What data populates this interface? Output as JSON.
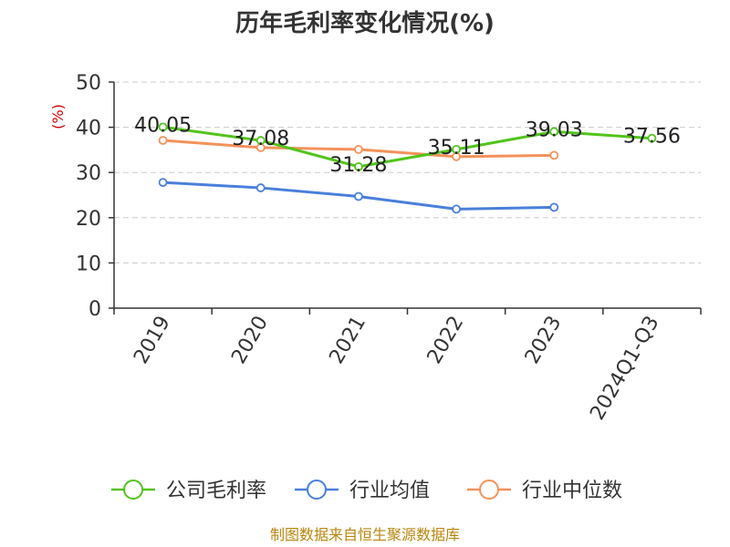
{
  "title": "历年毛利率变化情况(%)",
  "source": "制图数据来自恒生聚源数据库",
  "chart_data": {
    "type": "line",
    "title": "历年毛利率变化情况(%)",
    "ylabel": "(%)",
    "xlabel": "",
    "categories": [
      "2019",
      "2020",
      "2021",
      "2022",
      "2023",
      "2024Q1-Q3"
    ],
    "ylim": [
      0,
      50
    ],
    "yticks": [
      0,
      10,
      20,
      30,
      40,
      50
    ],
    "grid": "horizontal dashed",
    "legend_position": "bottom",
    "series": [
      {
        "name": "公司毛利率",
        "color": "#52c41a",
        "values": [
          40.05,
          37.08,
          31.28,
          35.11,
          39.03,
          37.56
        ],
        "labels": [
          "40.05",
          "37.08",
          "31.28",
          "35.11",
          "39.03",
          "37.56"
        ]
      },
      {
        "name": "行业均值",
        "color": "#4a7fdc",
        "values": [
          27.8,
          26.6,
          24.7,
          21.9,
          22.3,
          null
        ]
      },
      {
        "name": "行业中位数",
        "color": "#f4925a",
        "values": [
          37.1,
          35.5,
          35.1,
          33.5,
          33.8,
          null
        ]
      }
    ]
  }
}
